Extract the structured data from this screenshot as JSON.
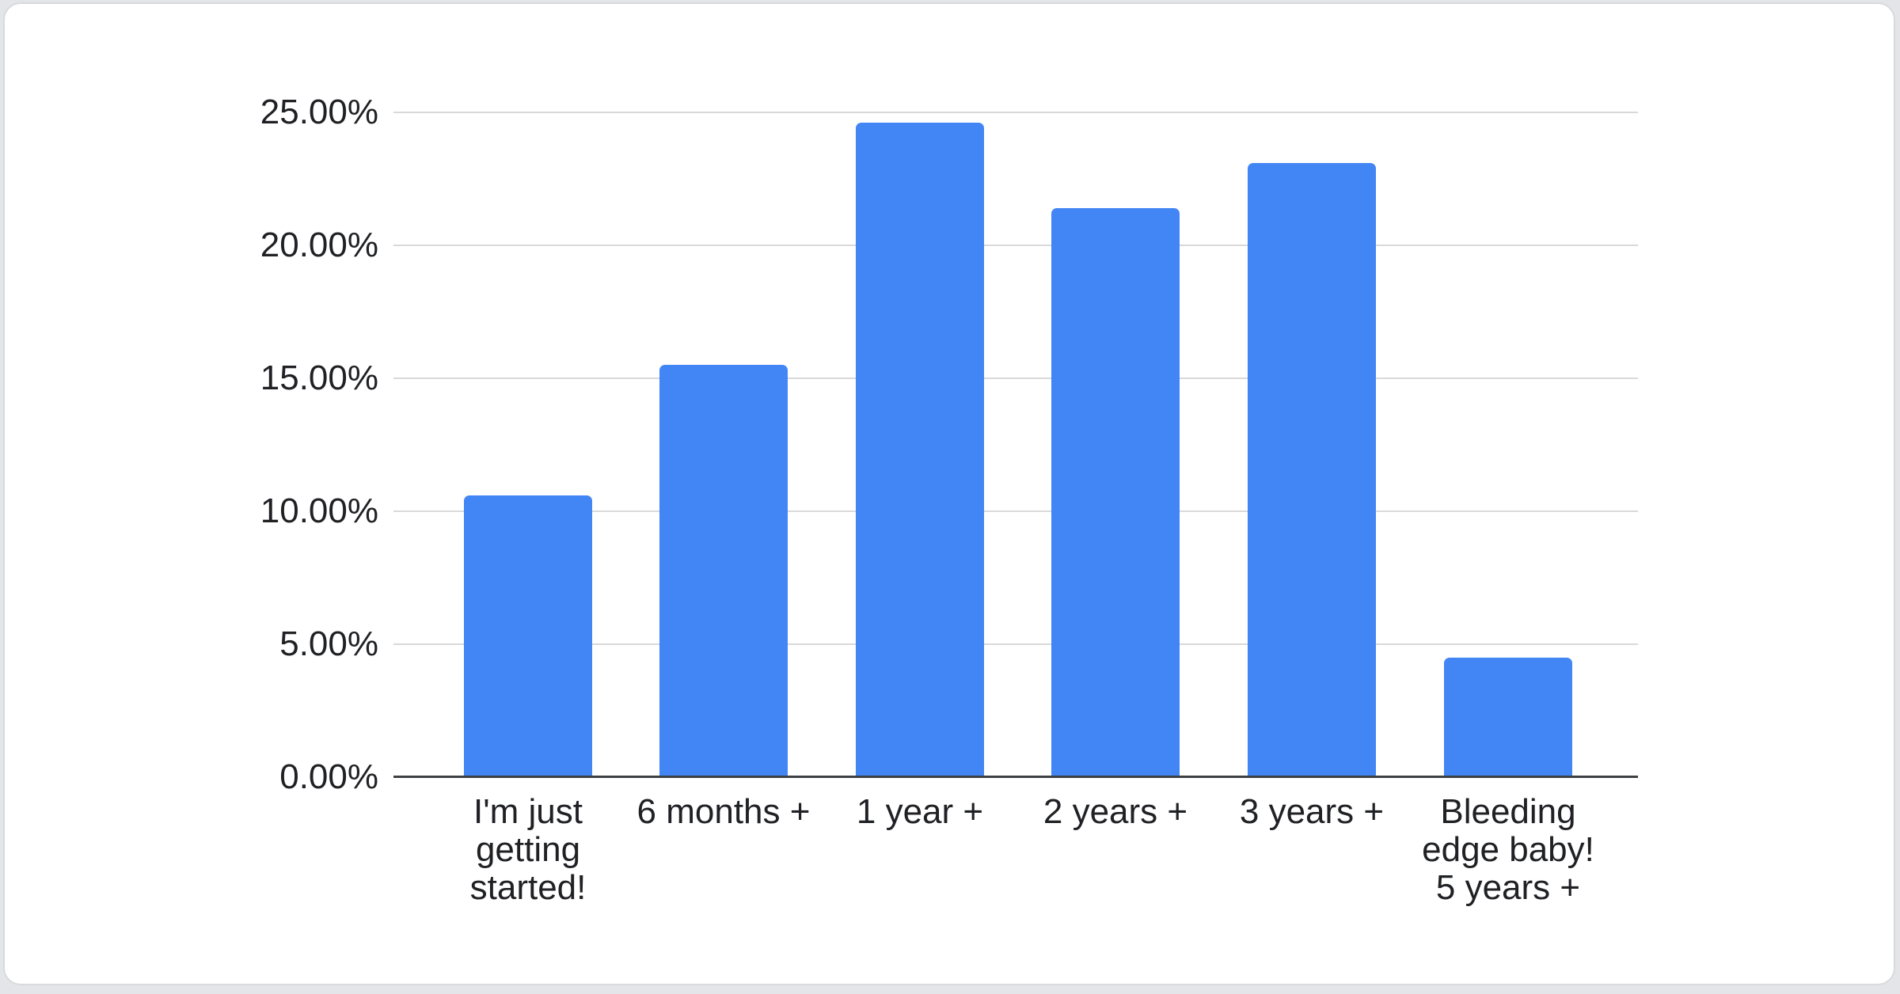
{
  "chart_data": {
    "type": "bar",
    "title": "",
    "xlabel": "",
    "ylabel": "",
    "categories": [
      "I'm just getting started!",
      "6 months +",
      "1 year +",
      "2 years +",
      "3 years +",
      "Bleeding edge baby! 5 years +"
    ],
    "values": [
      10.6,
      15.5,
      24.6,
      21.4,
      23.1,
      4.5
    ],
    "unit": "%",
    "ylim": [
      0,
      25
    ],
    "ytick_step": 5,
    "ytick_labels": [
      "0.00%",
      "5.00%",
      "10.00%",
      "15.00%",
      "20.00%",
      "25.00%"
    ],
    "x_labels_display": [
      "I'm just\ngetting\nstarted!",
      "6 months +",
      "1 year +",
      "2 years +",
      "3 years +",
      "Bleeding\nedge baby!\n5 years +"
    ],
    "grid": true,
    "legend": "none",
    "bar_color": "#4285f4"
  },
  "palette": {
    "bar": "#4285f4",
    "grid_line": "#d9d9d9",
    "axis_line": "#3c4043",
    "axis_text": "#202124",
    "card_background": "#ffffff",
    "card_border": "#d8dade",
    "page_background": "#e3e5e8"
  }
}
